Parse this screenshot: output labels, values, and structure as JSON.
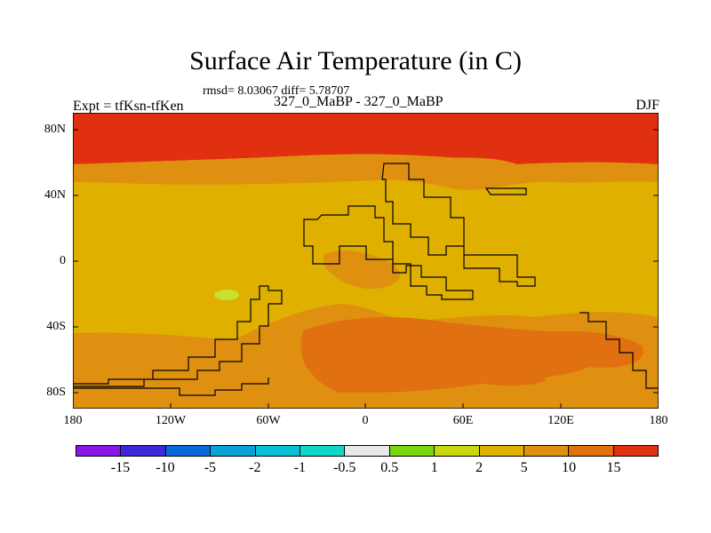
{
  "title": "Surface Air Temperature (in C)",
  "stats": "rmsd= 8.03067 diff= 5.78707",
  "expt_left": "Expt = tfKsn-tfKen",
  "expt_center": "327_0_MaBP - 327_0_MaBP",
  "season": "DJF",
  "map": {
    "projection": "cylindrical equidistant",
    "lon_range": [
      -180,
      180
    ],
    "lat_range": [
      -90,
      90
    ],
    "y_ticks": [
      "80N",
      "40N",
      "0",
      "40S",
      "80S"
    ],
    "x_ticks": [
      "180",
      "120W",
      "60W",
      "0",
      "60E",
      "120E",
      "180"
    ],
    "field_colors": {
      "north_polar": "#e03010",
      "midlatitude": "#e09010",
      "tropical": "#e0b000",
      "southern_band": "#e09010",
      "southern_continent": "#e07010",
      "positive_anomaly_patch": "#c8e030"
    }
  },
  "colorbar": {
    "labels": [
      "-15",
      "-10",
      "-5",
      "-2",
      "-1",
      "-0.5",
      "0.5",
      "1",
      "2",
      "5",
      "10",
      "15"
    ],
    "colors": [
      "#8a16e8",
      "#3c28d8",
      "#0a6ad8",
      "#0aa0d8",
      "#0ac0d8",
      "#10d8c8",
      "#e8e8e8",
      "#78d810",
      "#c8d810",
      "#e0b000",
      "#e09010",
      "#e07010",
      "#e03010"
    ]
  }
}
